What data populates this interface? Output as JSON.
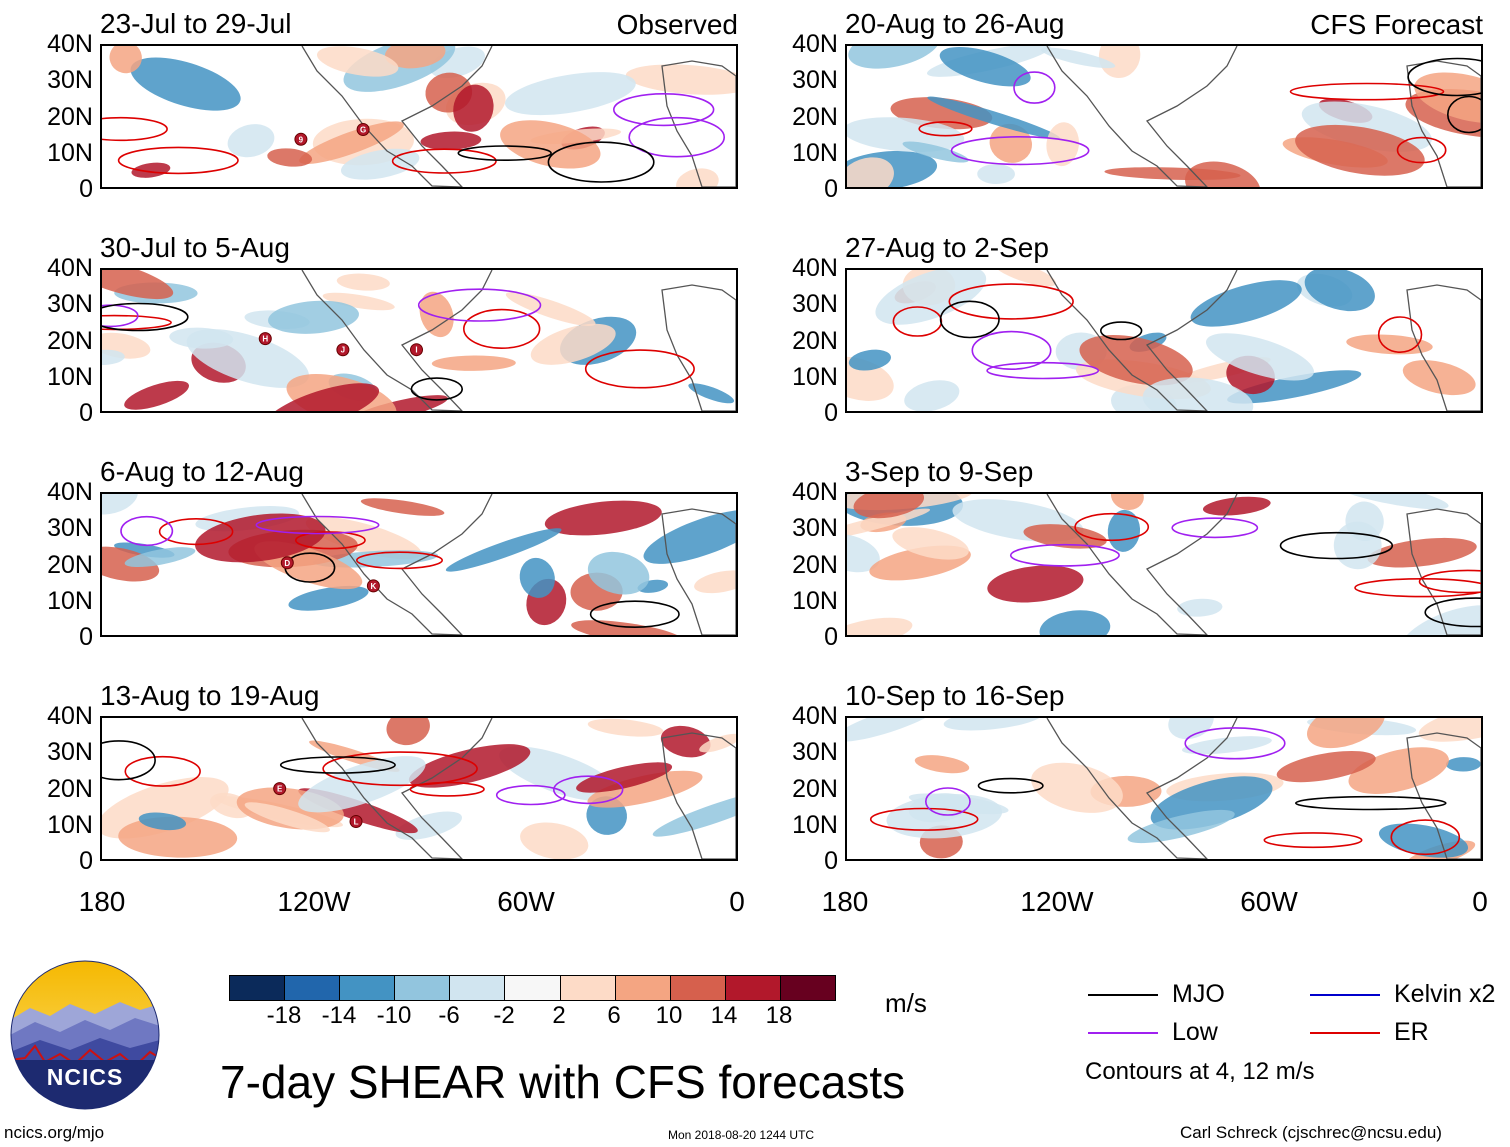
{
  "panels_left": [
    {
      "title": "23-Jul to 29-Jul",
      "tag": "Observed",
      "storms": [
        "9",
        "G"
      ]
    },
    {
      "title": "30-Jul to 5-Aug",
      "tag": "",
      "storms": [
        "H",
        "J",
        "I"
      ]
    },
    {
      "title": "6-Aug to 12-Aug",
      "tag": "",
      "storms": [
        "D",
        "K"
      ]
    },
    {
      "title": "13-Aug to 19-Aug",
      "tag": "",
      "storms": [
        "E",
        "L"
      ]
    }
  ],
  "panels_right": [
    {
      "title": "20-Aug to 26-Aug",
      "tag": "CFS Forecast"
    },
    {
      "title": "27-Aug to 2-Sep",
      "tag": ""
    },
    {
      "title": "3-Sep to 9-Sep",
      "tag": ""
    },
    {
      "title": "10-Sep to 16-Sep",
      "tag": ""
    }
  ],
  "lat_labels": [
    "40N",
    "30N",
    "20N",
    "10N",
    "0"
  ],
  "lon_labels": [
    "180",
    "120W",
    "60W",
    "0"
  ],
  "colorbar": {
    "colors": [
      "#0b2a5a",
      "#2166ac",
      "#4393c3",
      "#92c5de",
      "#d1e5f0",
      "#f7f7f7",
      "#fddbc7",
      "#f4a582",
      "#d6604d",
      "#b2182b",
      "#67001f"
    ],
    "labels": [
      "-18",
      "-14",
      "-10",
      "-6",
      "-2",
      "2",
      "6",
      "10",
      "14",
      "18"
    ],
    "units": "m/s"
  },
  "title": "7-day SHEAR with CFS forecasts",
  "legend": {
    "items": [
      {
        "label": "MJO",
        "color": "#000000"
      },
      {
        "label": "Kelvin x2",
        "color": "#0000cc"
      },
      {
        "label": "Low",
        "color": "#a020f0"
      },
      {
        "label": "ER",
        "color": "#dd0000"
      }
    ],
    "note": "Contours at 4, 12 m/s"
  },
  "logo": {
    "text": "NCICS"
  },
  "footer": {
    "website": "ncics.org/mjo",
    "timestamp": "Mon 2018-08-20 1244 UTC",
    "credit": "Carl Schreck (cjschrec@ncsu.edu)"
  }
}
